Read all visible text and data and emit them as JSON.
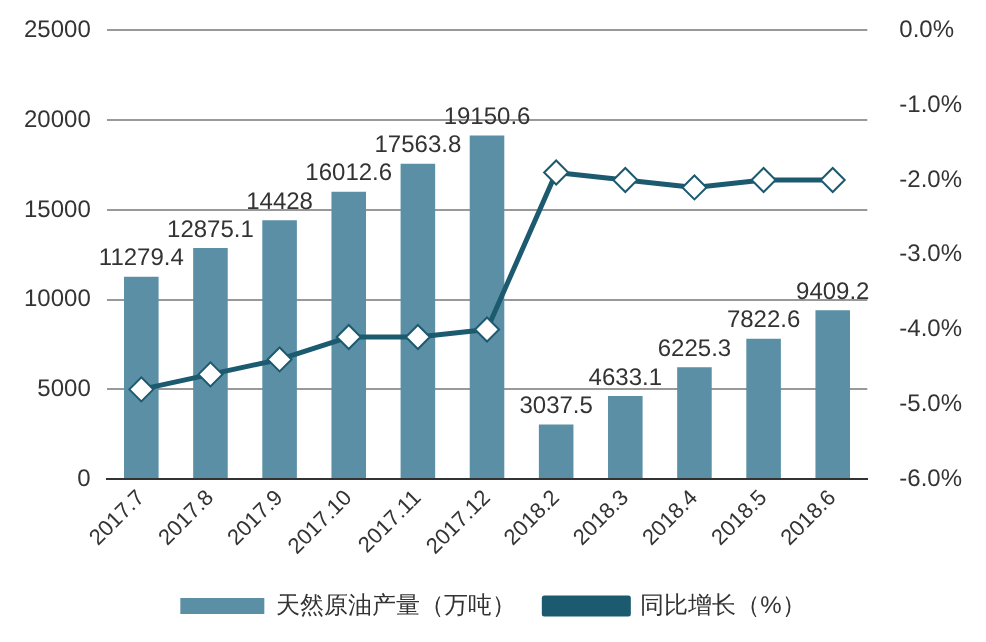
{
  "chart_data": {
    "type": "bar",
    "categories": [
      "2017.7",
      "2017.8",
      "2017.9",
      "2017.10",
      "2017.11",
      "2017.12",
      "2018.2",
      "2018.3",
      "2018.4",
      "2018.5",
      "2018.6"
    ],
    "series": [
      {
        "name": "天然原油产量（万吨）",
        "color": "#5b8fa6",
        "values": [
          11279.4,
          12875.1,
          14428,
          16012.6,
          17563.8,
          19150.6,
          3037.5,
          4633.1,
          6225.3,
          7822.6,
          9409.2
        ],
        "value_labels": [
          "11279.4",
          "12875.1",
          "14428",
          "16012.6",
          "17563.8",
          "19150.6",
          "3037.5",
          "4633.1",
          "6225.3",
          "7822.6",
          "9409.2"
        ]
      },
      {
        "name": "同比增长（%）",
        "type": "line",
        "axis": "y2",
        "color": "#1c5a70",
        "marker": "diamond",
        "values": [
          -4.8,
          -4.6,
          -4.4,
          -4.1,
          -4.1,
          -4.0,
          -1.9,
          -2.0,
          -2.1,
          -2.0,
          -2.0
        ]
      }
    ],
    "ylim": [
      0,
      25000
    ],
    "yticks": [
      0,
      5000,
      10000,
      15000,
      20000,
      25000
    ],
    "y2lim": [
      -6,
      0
    ],
    "y2ticks": [
      {
        "value": -6,
        "label": "-6.0%"
      },
      {
        "value": -5,
        "label": "-5.0%"
      },
      {
        "value": -4,
        "label": "-4.0%"
      },
      {
        "value": -3,
        "label": "-3.0%"
      },
      {
        "value": -2,
        "label": "-2.0%"
      },
      {
        "value": -1,
        "label": "-1.0%"
      },
      {
        "value": 0,
        "label": "0.0%"
      }
    ],
    "grid": "y",
    "legend": "bottom"
  }
}
